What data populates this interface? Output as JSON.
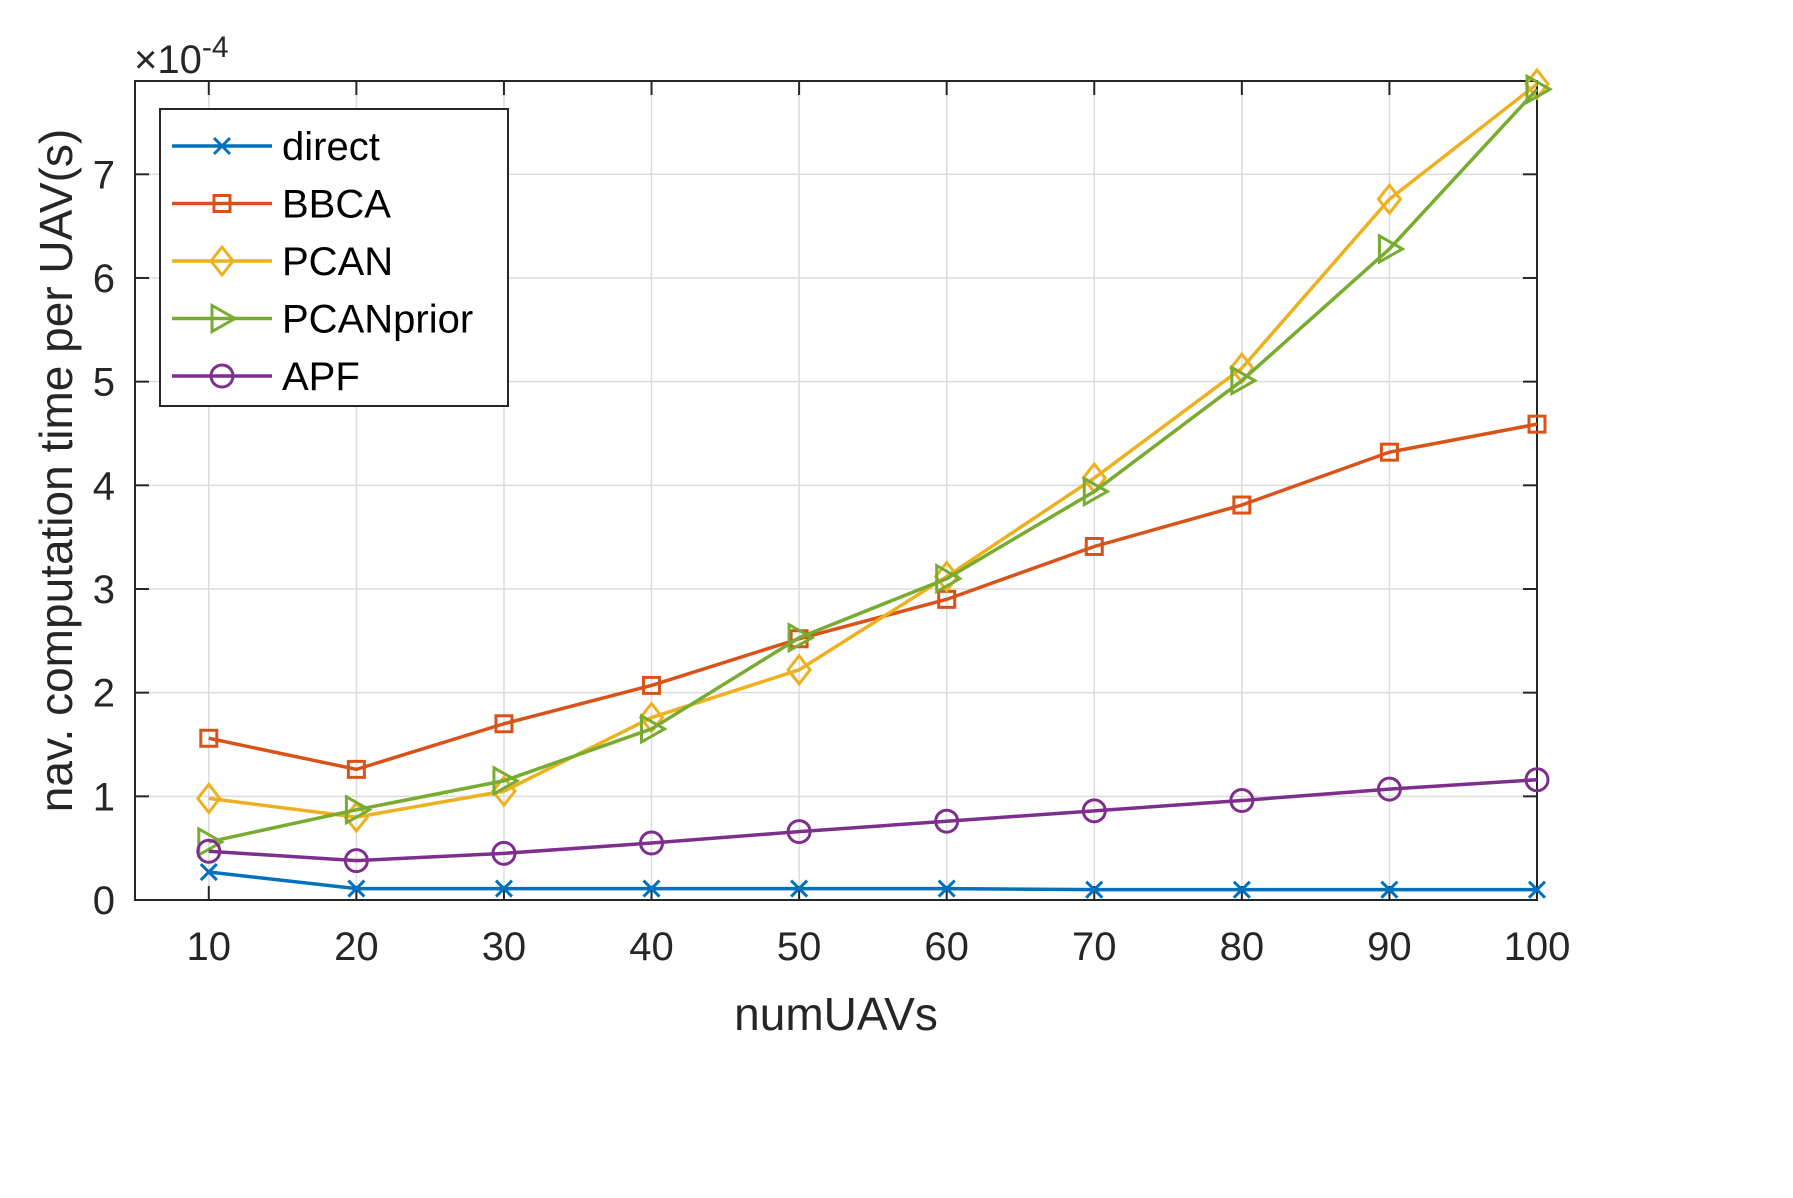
{
  "chart_data": {
    "type": "line",
    "title": "",
    "xlabel": "numUAVs",
    "ylabel": "nav. computation time per UAV(s)",
    "exponent_label": {
      "base": "×10",
      "power": "-4"
    },
    "x": [
      10,
      20,
      30,
      40,
      50,
      60,
      70,
      80,
      90,
      100
    ],
    "xlim": [
      5,
      100
    ],
    "ylim": [
      0,
      7.9
    ],
    "xticks": [
      "10",
      "20",
      "30",
      "40",
      "50",
      "60",
      "70",
      "80",
      "90",
      "100"
    ],
    "yticks": [
      "0",
      "1",
      "2",
      "3",
      "4",
      "5",
      "6",
      "7"
    ],
    "grid": true,
    "legend_location": "top-left",
    "series": [
      {
        "name": "direct",
        "color": "#0072BD",
        "marker": "x",
        "values": [
          0.27,
          0.11,
          0.11,
          0.11,
          0.11,
          0.11,
          0.1,
          0.1,
          0.1,
          0.1
        ]
      },
      {
        "name": "BBCA",
        "color": "#D95319",
        "marker": "square",
        "values": [
          1.56,
          1.26,
          1.7,
          2.07,
          2.52,
          2.9,
          3.41,
          3.81,
          4.32,
          4.59
        ]
      },
      {
        "name": "PCAN",
        "color": "#EDB120",
        "marker": "diamond",
        "values": [
          0.98,
          0.8,
          1.05,
          1.76,
          2.22,
          3.12,
          4.07,
          5.13,
          6.76,
          7.87
        ]
      },
      {
        "name": "PCANprior",
        "color": "#77AC30",
        "marker": "triangle-right",
        "values": [
          0.56,
          0.87,
          1.15,
          1.65,
          2.53,
          3.1,
          3.94,
          5.01,
          6.28,
          7.82
        ]
      },
      {
        "name": "APF",
        "color": "#7E2F8E",
        "marker": "circle",
        "values": [
          0.47,
          0.38,
          0.45,
          0.55,
          0.66,
          0.76,
          0.86,
          0.96,
          1.07,
          1.16
        ]
      }
    ]
  }
}
